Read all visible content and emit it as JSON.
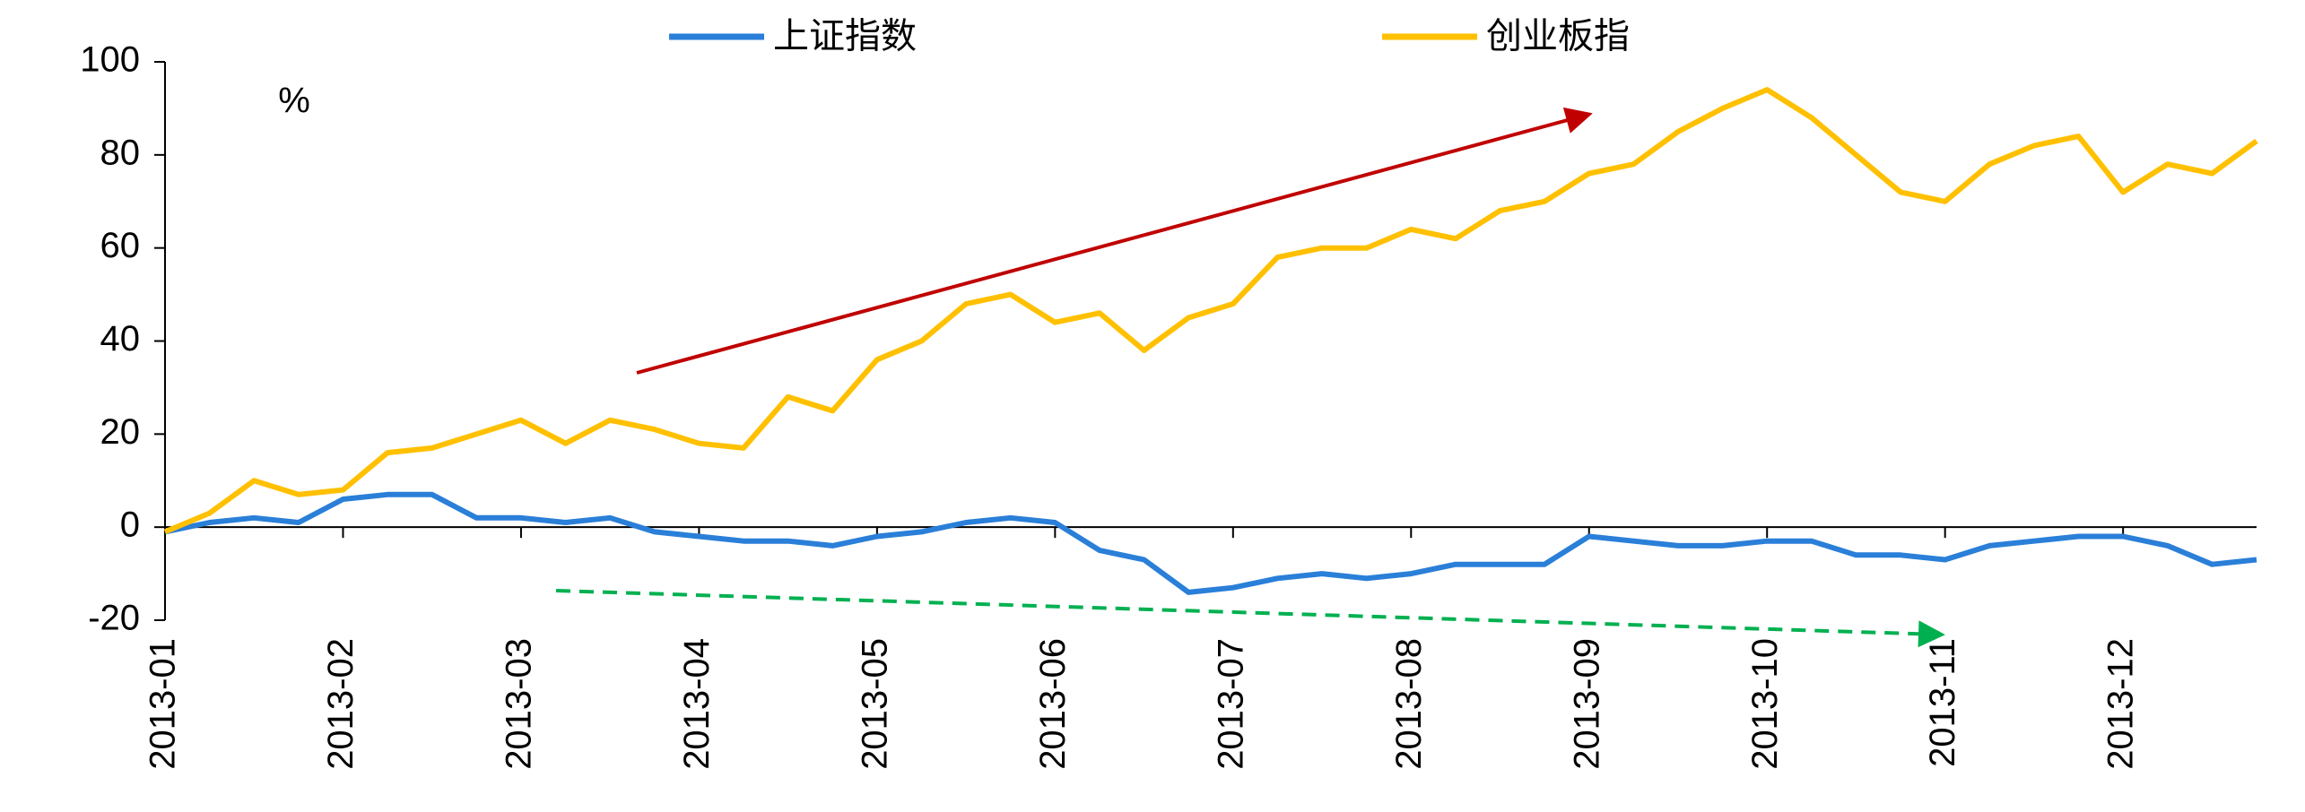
{
  "chart_data": {
    "type": "line",
    "categories": [
      "2013-01",
      null,
      null,
      null,
      "2013-02",
      null,
      null,
      null,
      "2013-03",
      null,
      null,
      null,
      "2013-04",
      null,
      null,
      null,
      "2013-05",
      null,
      null,
      null,
      "2013-06",
      null,
      null,
      null,
      "2013-07",
      null,
      null,
      null,
      "2013-08",
      null,
      null,
      null,
      "2013-09",
      null,
      null,
      null,
      "2013-10",
      null,
      null,
      null,
      "2013-11",
      null,
      null,
      null,
      "2013-12",
      null,
      null,
      null
    ],
    "series": [
      {
        "name": "上证指数",
        "color": "#2a7fd8",
        "values": [
          -1,
          1,
          2,
          1,
          6,
          7,
          7,
          2,
          2,
          1,
          2,
          -1,
          -2,
          -3,
          -3,
          -4,
          -2,
          -1,
          1,
          2,
          1,
          -5,
          -7,
          -14,
          -13,
          -11,
          -10,
          -11,
          -10,
          -8,
          -8,
          -8,
          -2,
          -3,
          -4,
          -4,
          -3,
          -3,
          -6,
          -6,
          -7,
          -4,
          -3,
          -2,
          -2,
          -4,
          -8,
          -7
        ]
      },
      {
        "name": "创业板指",
        "color": "#ffc000",
        "values": [
          -1,
          3,
          10,
          7,
          8,
          16,
          17,
          20,
          23,
          18,
          23,
          21,
          18,
          17,
          28,
          25,
          36,
          40,
          48,
          50,
          44,
          46,
          38,
          45,
          48,
          58,
          60,
          60,
          64,
          62,
          68,
          70,
          76,
          78,
          85,
          90,
          94,
          88,
          80,
          72,
          70,
          78,
          82,
          84,
          72,
          78,
          76,
          83
        ]
      }
    ],
    "ylim": [
      -20,
      100
    ],
    "yticks": [
      -20,
      0,
      20,
      40,
      60,
      80,
      100
    ],
    "y_unit": "%",
    "legend": "top"
  }
}
